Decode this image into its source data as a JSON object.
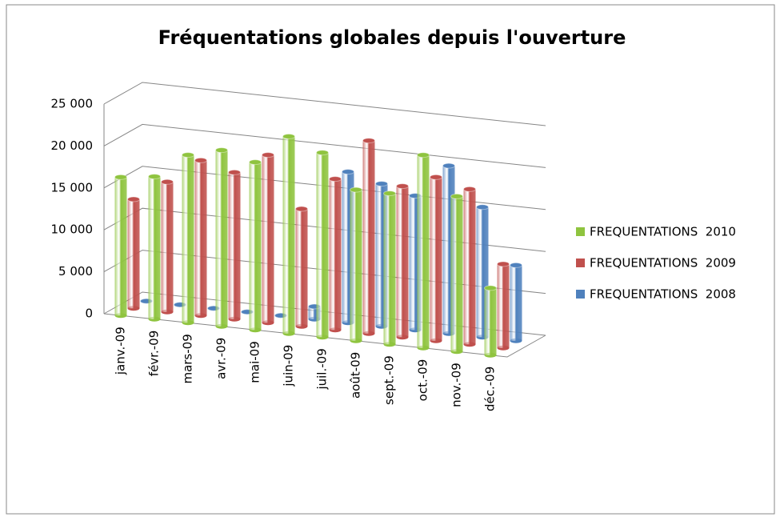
{
  "chart_data": {
    "type": "bar3d",
    "title": "Fréquentations globales depuis l'ouverture",
    "categories": [
      "janv.-09",
      "févr.-09",
      "mars-09",
      "avr.-09",
      "mai-09",
      "juin-09",
      "juil.-09",
      "août-09",
      "sept.-09",
      "oct.-09",
      "nov.-09",
      "déc.-09"
    ],
    "series": [
      {
        "name": "FREQUENTATIONS  2010",
        "color": "#8fc43f",
        "values": [
          16500,
          17000,
          20000,
          21000,
          20000,
          23500,
          22000,
          18000,
          18000,
          23000,
          18500,
          8000
        ]
      },
      {
        "name": "FREQUENTATIONS  2009",
        "color": "#c0504d",
        "values": [
          13000,
          15500,
          18500,
          17500,
          20000,
          14000,
          18000,
          23000,
          18000,
          19500,
          18500,
          10000
        ]
      },
      {
        "name": "FREQUENTATIONS  2008",
        "color": "#4f81bd",
        "values": [
          0,
          0,
          0,
          0,
          0,
          1500,
          18000,
          17000,
          16000,
          20000,
          15500,
          9000
        ]
      }
    ],
    "ylim": [
      0,
      25000
    ],
    "yticks": [
      0,
      {
        "value": 5000,
        "label": "5 000"
      },
      {
        "value": 10000,
        "label": "10 000"
      },
      {
        "value": 15000,
        "label": "15 000"
      },
      {
        "value": 20000,
        "label": "20 000"
      },
      {
        "value": 25000,
        "label": "25 000"
      }
    ],
    "grid": true,
    "legend": "right"
  }
}
